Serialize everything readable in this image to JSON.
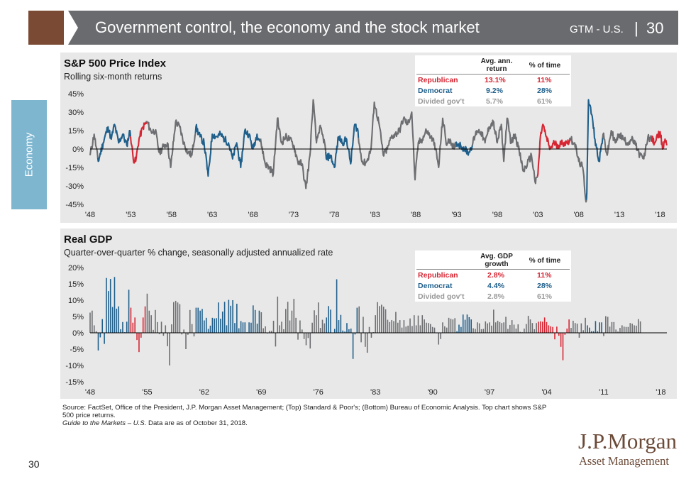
{
  "header": {
    "title": "Government control, the economy and the stock market",
    "gtm_label": "GTM - U.S.",
    "separator": "|",
    "page": "30"
  },
  "sidebar": {
    "section": "Economy"
  },
  "colors": {
    "republican": "#d62633",
    "democrat": "#1f5f8b",
    "divided": "#6d6e71",
    "brown": "#7a4a34",
    "side_tab": "#7eb6d0"
  },
  "footer": {
    "source": "Source: FactSet, Office of the President, J.P. Morgan Asset Management; (Top) Standard & Poor's; (Bottom) Bureau of Economic Analysis. Top chart shows S&P 500 price returns.",
    "guide_italic": "Guide to the Markets – U.S.",
    "guide_rest": " Data are as of October 31, 2018.",
    "page_number": "30"
  },
  "logo": {
    "name": "J.P.Morgan",
    "sub": "Asset Management"
  },
  "chart_data": [
    {
      "type": "line",
      "title": "S&P 500 Price Index",
      "subtitle": "Rolling six-month returns",
      "xlim": [
        1948,
        2018.83
      ],
      "ylim": [
        -45,
        45
      ],
      "y_ticks": [
        "45%",
        "30%",
        "15%",
        "0%",
        "-15%",
        "-30%",
        "-45%"
      ],
      "x_ticks": [
        "'48",
        "'53",
        "'58",
        "'63",
        "'68",
        "'73",
        "'78",
        "'83",
        "'88",
        "'93",
        "'98",
        "'03",
        "'08",
        "'13",
        "'18"
      ],
      "x_tick_years": [
        1948,
        1953,
        1958,
        1963,
        1968,
        1973,
        1978,
        1983,
        1988,
        1993,
        1998,
        2003,
        2008,
        2013,
        2018
      ],
      "table": {
        "col1": "Avg. ann. return",
        "col2": "% of time",
        "rows": [
          {
            "label": "Republican",
            "value": "13.1%",
            "pct": "11%",
            "party": "R"
          },
          {
            "label": "Democrat",
            "value": "9.2%",
            "pct": "28%",
            "party": "D"
          },
          {
            "label": "Divided gov't",
            "value": "5.7%",
            "pct": "61%",
            "party": "X"
          }
        ]
      },
      "regimes": [
        {
          "party": "X",
          "start": 1948.0,
          "end": 1949.0
        },
        {
          "party": "D",
          "start": 1949.0,
          "end": 1953.0
        },
        {
          "party": "R",
          "start": 1953.0,
          "end": 1955.0
        },
        {
          "party": "X",
          "start": 1955.0,
          "end": 1961.0
        },
        {
          "party": "D",
          "start": 1961.0,
          "end": 1969.0
        },
        {
          "party": "X",
          "start": 1969.0,
          "end": 1977.0
        },
        {
          "party": "D",
          "start": 1977.0,
          "end": 1981.0
        },
        {
          "party": "X",
          "start": 1981.0,
          "end": 1993.0
        },
        {
          "party": "D",
          "start": 1993.0,
          "end": 1995.0
        },
        {
          "party": "X",
          "start": 1995.0,
          "end": 2003.0
        },
        {
          "party": "R",
          "start": 2003.0,
          "end": 2007.0
        },
        {
          "party": "X",
          "start": 2007.0,
          "end": 2009.0
        },
        {
          "party": "D",
          "start": 2009.0,
          "end": 2011.0
        },
        {
          "party": "X",
          "start": 2011.0,
          "end": 2017.0
        },
        {
          "party": "R",
          "start": 2017.0,
          "end": 2018.83
        }
      ],
      "keypoints": [
        [
          1948.0,
          -5
        ],
        [
          1948.5,
          12
        ],
        [
          1949.0,
          -10
        ],
        [
          1949.6,
          5
        ],
        [
          1950.2,
          18
        ],
        [
          1950.6,
          8
        ],
        [
          1951.0,
          20
        ],
        [
          1951.5,
          5
        ],
        [
          1952.0,
          12
        ],
        [
          1952.5,
          3
        ],
        [
          1952.9,
          15
        ],
        [
          1953.3,
          -8
        ],
        [
          1953.6,
          -10
        ],
        [
          1954.0,
          8
        ],
        [
          1954.5,
          18
        ],
        [
          1955.0,
          22
        ],
        [
          1955.5,
          14
        ],
        [
          1956.0,
          15
        ],
        [
          1956.5,
          -3
        ],
        [
          1957.0,
          2
        ],
        [
          1957.5,
          5
        ],
        [
          1957.9,
          -15
        ],
        [
          1958.5,
          22
        ],
        [
          1959.0,
          18
        ],
        [
          1959.5,
          5
        ],
        [
          1960.0,
          -3
        ],
        [
          1960.5,
          -5
        ],
        [
          1961.0,
          18
        ],
        [
          1961.5,
          10
        ],
        [
          1962.0,
          5
        ],
        [
          1962.5,
          -22
        ],
        [
          1963.0,
          12
        ],
        [
          1963.5,
          10
        ],
        [
          1964.0,
          12
        ],
        [
          1964.5,
          8
        ],
        [
          1965.0,
          5
        ],
        [
          1965.5,
          -8
        ],
        [
          1966.0,
          5
        ],
        [
          1966.5,
          -15
        ],
        [
          1967.0,
          15
        ],
        [
          1967.5,
          12
        ],
        [
          1968.0,
          0
        ],
        [
          1968.5,
          12
        ],
        [
          1969.0,
          5
        ],
        [
          1969.5,
          -12
        ],
        [
          1970.0,
          -15
        ],
        [
          1970.5,
          -20
        ],
        [
          1971.0,
          25
        ],
        [
          1971.5,
          5
        ],
        [
          1972.0,
          10
        ],
        [
          1972.5,
          8
        ],
        [
          1973.0,
          3
        ],
        [
          1973.5,
          -10
        ],
        [
          1974.0,
          -12
        ],
        [
          1974.5,
          -32
        ],
        [
          1975.0,
          -5
        ],
        [
          1975.4,
          40
        ],
        [
          1975.8,
          5
        ],
        [
          1976.2,
          18
        ],
        [
          1976.8,
          5
        ],
        [
          1977.0,
          -8
        ],
        [
          1977.5,
          -5
        ],
        [
          1978.0,
          -15
        ],
        [
          1978.5,
          10
        ],
        [
          1979.0,
          5
        ],
        [
          1979.5,
          8
        ],
        [
          1980.0,
          -12
        ],
        [
          1980.5,
          20
        ],
        [
          1980.9,
          15
        ],
        [
          1981.0,
          5
        ],
        [
          1981.5,
          -12
        ],
        [
          1982.0,
          -10
        ],
        [
          1982.5,
          0
        ],
        [
          1982.9,
          38
        ],
        [
          1983.5,
          20
        ],
        [
          1984.0,
          -5
        ],
        [
          1984.5,
          0
        ],
        [
          1985.0,
          10
        ],
        [
          1985.5,
          12
        ],
        [
          1986.0,
          15
        ],
        [
          1986.5,
          25
        ],
        [
          1987.0,
          20
        ],
        [
          1987.5,
          30
        ],
        [
          1987.9,
          -25
        ],
        [
          1988.3,
          5
        ],
        [
          1988.8,
          8
        ],
        [
          1989.3,
          15
        ],
        [
          1989.8,
          10
        ],
        [
          1990.3,
          5
        ],
        [
          1990.8,
          -15
        ],
        [
          1991.3,
          25
        ],
        [
          1991.8,
          3
        ],
        [
          1992.2,
          8
        ],
        [
          1992.7,
          0
        ],
        [
          1993.0,
          5
        ],
        [
          1993.5,
          3
        ],
        [
          1994.0,
          0
        ],
        [
          1994.5,
          -3
        ],
        [
          1995.0,
          5
        ],
        [
          1995.5,
          15
        ],
        [
          1996.0,
          14
        ],
        [
          1996.5,
          5
        ],
        [
          1997.0,
          18
        ],
        [
          1997.5,
          22
        ],
        [
          1998.0,
          5
        ],
        [
          1998.5,
          20
        ],
        [
          1998.8,
          -10
        ],
        [
          1999.2,
          25
        ],
        [
          1999.7,
          5
        ],
        [
          2000.2,
          12
        ],
        [
          2000.7,
          -2
        ],
        [
          2001.2,
          -18
        ],
        [
          2001.7,
          -12
        ],
        [
          2002.2,
          -5
        ],
        [
          2002.7,
          -28
        ],
        [
          2003.0,
          -20
        ],
        [
          2003.3,
          10
        ],
        [
          2003.6,
          20
        ],
        [
          2004.0,
          10
        ],
        [
          2004.5,
          0
        ],
        [
          2005.0,
          5
        ],
        [
          2005.5,
          3
        ],
        [
          2006.0,
          5
        ],
        [
          2006.5,
          5
        ],
        [
          2007.0,
          8
        ],
        [
          2007.5,
          5
        ],
        [
          2008.0,
          -10
        ],
        [
          2008.5,
          -15
        ],
        [
          2008.9,
          -43
        ],
        [
          2009.0,
          -35
        ],
        [
          2009.2,
          40
        ],
        [
          2009.6,
          28
        ],
        [
          2010.0,
          8
        ],
        [
          2010.5,
          -10
        ],
        [
          2011.0,
          12
        ],
        [
          2011.5,
          -5
        ],
        [
          2012.0,
          15
        ],
        [
          2012.5,
          5
        ],
        [
          2013.0,
          12
        ],
        [
          2013.5,
          8
        ],
        [
          2014.0,
          5
        ],
        [
          2014.5,
          8
        ],
        [
          2015.0,
          3
        ],
        [
          2015.5,
          -5
        ],
        [
          2016.0,
          -8
        ],
        [
          2016.5,
          10
        ],
        [
          2017.0,
          8
        ],
        [
          2017.3,
          5
        ],
        [
          2017.7,
          10
        ],
        [
          2018.0,
          14
        ],
        [
          2018.3,
          0
        ],
        [
          2018.6,
          8
        ],
        [
          2018.83,
          3
        ]
      ]
    },
    {
      "type": "bar",
      "title": "Real GDP",
      "subtitle": "Quarter-over-quarter % change, seasonally adjusted annualized rate",
      "xlim": [
        1948,
        2018.75
      ],
      "ylim": [
        -15,
        20
      ],
      "y_ticks": [
        "20%",
        "15%",
        "10%",
        "5%",
        "0%",
        "-5%",
        "-10%",
        "-15%"
      ],
      "x_ticks": [
        "'48",
        "'55",
        "'62",
        "'69",
        "'76",
        "'83",
        "'90",
        "'97",
        "'04",
        "'11",
        "'18"
      ],
      "x_tick_years": [
        1948,
        1955,
        1962,
        1969,
        1976,
        1983,
        1990,
        1997,
        2004,
        2011,
        2018
      ],
      "table": {
        "col1": "Avg. GDP growth",
        "col2": "% of time",
        "rows": [
          {
            "label": "Republican",
            "value": "2.8%",
            "pct": "11%",
            "party": "R"
          },
          {
            "label": "Democrat",
            "value": "4.4%",
            "pct": "28%",
            "party": "D"
          },
          {
            "label": "Divided gov't",
            "value": "2.8%",
            "pct": "61%",
            "party": "X"
          }
        ]
      },
      "regimes": [
        {
          "party": "X",
          "start": 1948.0,
          "end": 1949.0
        },
        {
          "party": "D",
          "start": 1949.0,
          "end": 1953.0
        },
        {
          "party": "R",
          "start": 1953.0,
          "end": 1955.0
        },
        {
          "party": "X",
          "start": 1955.0,
          "end": 1961.0
        },
        {
          "party": "D",
          "start": 1961.0,
          "end": 1969.0
        },
        {
          "party": "X",
          "start": 1969.0,
          "end": 1977.0
        },
        {
          "party": "D",
          "start": 1977.0,
          "end": 1981.0
        },
        {
          "party": "X",
          "start": 1981.0,
          "end": 1993.0
        },
        {
          "party": "D",
          "start": 1993.0,
          "end": 1995.0
        },
        {
          "party": "X",
          "start": 1995.0,
          "end": 2003.0
        },
        {
          "party": "R",
          "start": 2003.0,
          "end": 2007.0
        },
        {
          "party": "X",
          "start": 2007.0,
          "end": 2009.0
        },
        {
          "party": "D",
          "start": 2009.0,
          "end": 2011.0
        },
        {
          "party": "X",
          "start": 2011.0,
          "end": 2017.0
        },
        {
          "party": "R",
          "start": 2017.0,
          "end": 2018.75
        }
      ],
      "quarterly_growth": [
        6.2,
        6.8,
        2.3,
        0.5,
        -5.4,
        -1.4,
        4.2,
        -3.4,
        16.8,
        12.8,
        16.5,
        7.9,
        17.1,
        7.4,
        8.1,
        1.1,
        3.3,
        0.2,
        3.4,
        13.2,
        7.7,
        3.1,
        4.7,
        -2.2,
        -5.9,
        -1.5,
        4.7,
        8.1,
        12.0,
        6.8,
        5.4,
        0.9,
        7.0,
        3.3,
        -0.4,
        3.4,
        -0.9,
        2.3,
        -4.1,
        -10.0,
        2.6,
        9.4,
        9.8,
        9.3,
        8.8,
        -0.5,
        1.0,
        -5.0,
        -0.6,
        7.0,
        2.7,
        -1.1,
        7.7,
        7.7,
        6.8,
        7.3,
        3.8,
        4.6,
        1.2,
        2.2,
        4.6,
        4.4,
        4.5,
        9.3,
        4.3,
        6.5,
        9.5,
        2.3,
        10.1,
        8.3,
        10.0,
        3.0,
        8.9,
        1.4,
        3.6,
        3.2,
        3.2,
        0.2,
        3.2,
        3.1,
        8.4,
        7.0,
        2.8,
        6.8,
        6.3,
        1.4,
        2.0,
        -0.2,
        0.6,
        0.6,
        3.7,
        -4.2,
        11.1,
        2.3,
        3.4,
        1.1,
        7.3,
        9.5,
        3.8,
        6.8,
        10.4,
        4.6,
        -2.1,
        3.8,
        1.0,
        -1.9,
        -3.8,
        -1.6,
        -4.8,
        3.1,
        6.9,
        5.4,
        9.3,
        1.5,
        4.0,
        2.9,
        4.7,
        8.2,
        7.1,
        0.0,
        1.2,
        16.4,
        3.9,
        5.5,
        0.7,
        0.4,
        3.0,
        1.1,
        1.3,
        -8.0,
        -0.5,
        7.7,
        8.1,
        -2.9,
        4.9,
        -4.3,
        -6.1,
        1.8,
        -1.5,
        0.2,
        5.4,
        9.4,
        8.2,
        8.6,
        8.0,
        7.2,
        4.0,
        3.3,
        3.9,
        3.6,
        6.4,
        3.1,
        3.9,
        1.6,
        3.9,
        1.9,
        2.2,
        4.4,
        2.1,
        5.4,
        2.3,
        5.3,
        2.3,
        5.4,
        4.1,
        3.1,
        3.0,
        2.7,
        1.8,
        1.6,
        0.0,
        -3.6,
        -1.9,
        3.2,
        2.0,
        1.6,
        4.6,
        4.3,
        4.1,
        4.5,
        0.5,
        2.5,
        1.8,
        5.6,
        4.0,
        5.6,
        4.8,
        4.1,
        1.4,
        1.2,
        3.2,
        2.9,
        1.1,
        1.2,
        3.5,
        2.9,
        3.2,
        2.2,
        7.1,
        3.2,
        3.7,
        3.3,
        3.0,
        3.2,
        4.9,
        1.2,
        2.4,
        3.9,
        2.5,
        1.3,
        2.6,
        0.3,
        0.2,
        1.3,
        2.7,
        5.2,
        4.1,
        3.0,
        1.1,
        3.0,
        3.4,
        3.5,
        3.4,
        4.7,
        3.3,
        2.3,
        2.0,
        1.8,
        -2.0,
        1.9,
        -0.9,
        -4.3,
        -8.4,
        -0.6,
        1.3,
        4.1,
        1.5,
        3.7,
        3.0,
        2.8,
        -1.5,
        2.9,
        0.8,
        4.6,
        2.3,
        1.6,
        0.5,
        0.5,
        3.6,
        0.5,
        3.2,
        3.2,
        -1.0,
        5.1,
        4.9,
        1.9,
        3.3,
        3.3,
        1.0,
        0.4,
        1.5,
        2.3,
        1.9,
        1.8,
        1.8,
        3.0,
        2.8,
        2.3,
        2.2,
        4.2,
        3.5
      ]
    }
  ]
}
